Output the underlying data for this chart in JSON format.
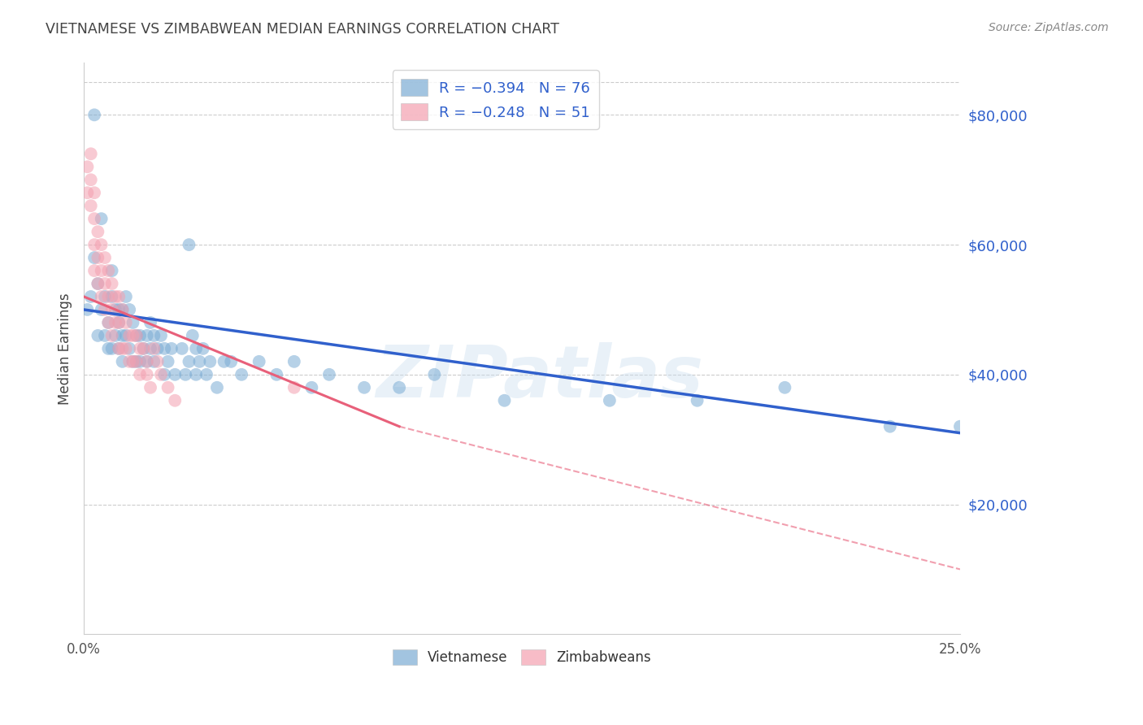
{
  "title": "VIETNAMESE VS ZIMBABWEAN MEDIAN EARNINGS CORRELATION CHART",
  "source": "Source: ZipAtlas.com",
  "ylabel": "Median Earnings",
  "yticks": [
    20000,
    40000,
    60000,
    80000
  ],
  "ytick_labels": [
    "$20,000",
    "$40,000",
    "$60,000",
    "$80,000"
  ],
  "ylim": [
    0,
    88000
  ],
  "xlim": [
    0.0,
    0.25
  ],
  "xtick_positions": [
    0.0,
    0.25
  ],
  "xtick_labels": [
    "0.0%",
    "25.0%"
  ],
  "legend_blue_r": "R = −0.394",
  "legend_blue_n": "N = 76",
  "legend_pink_r": "R = −0.248",
  "legend_pink_n": "N = 51",
  "watermark": "ZIPatlas",
  "blue_color": "#7BACD4",
  "pink_color": "#F4A0B0",
  "line_blue": "#3060CC",
  "line_pink": "#E8607A",
  "grid_color": "#CCCCCC",
  "title_color": "#444444",
  "source_color": "#888888",
  "ylabel_color": "#444444",
  "blue_scatter_x": [
    0.001,
    0.002,
    0.003,
    0.003,
    0.004,
    0.004,
    0.005,
    0.005,
    0.006,
    0.006,
    0.007,
    0.007,
    0.008,
    0.008,
    0.008,
    0.009,
    0.009,
    0.01,
    0.01,
    0.01,
    0.011,
    0.011,
    0.011,
    0.012,
    0.012,
    0.013,
    0.013,
    0.014,
    0.014,
    0.015,
    0.015,
    0.016,
    0.016,
    0.017,
    0.018,
    0.018,
    0.019,
    0.019,
    0.02,
    0.02,
    0.021,
    0.022,
    0.023,
    0.023,
    0.024,
    0.025,
    0.026,
    0.028,
    0.029,
    0.03,
    0.03,
    0.031,
    0.032,
    0.032,
    0.033,
    0.034,
    0.035,
    0.036,
    0.038,
    0.04,
    0.042,
    0.045,
    0.05,
    0.055,
    0.06,
    0.065,
    0.07,
    0.08,
    0.09,
    0.1,
    0.12,
    0.15,
    0.175,
    0.2,
    0.23,
    0.25
  ],
  "blue_scatter_y": [
    50000,
    52000,
    58000,
    80000,
    54000,
    46000,
    64000,
    50000,
    52000,
    46000,
    48000,
    44000,
    56000,
    52000,
    44000,
    50000,
    46000,
    50000,
    48000,
    44000,
    50000,
    46000,
    42000,
    52000,
    46000,
    50000,
    44000,
    48000,
    42000,
    46000,
    42000,
    46000,
    42000,
    44000,
    46000,
    42000,
    48000,
    44000,
    46000,
    42000,
    44000,
    46000,
    44000,
    40000,
    42000,
    44000,
    40000,
    44000,
    40000,
    60000,
    42000,
    46000,
    44000,
    40000,
    42000,
    44000,
    40000,
    42000,
    38000,
    42000,
    42000,
    40000,
    42000,
    40000,
    42000,
    38000,
    40000,
    38000,
    38000,
    40000,
    36000,
    36000,
    36000,
    38000,
    32000,
    32000
  ],
  "pink_scatter_x": [
    0.001,
    0.001,
    0.002,
    0.002,
    0.002,
    0.003,
    0.003,
    0.003,
    0.003,
    0.004,
    0.004,
    0.004,
    0.005,
    0.005,
    0.005,
    0.006,
    0.006,
    0.006,
    0.007,
    0.007,
    0.007,
    0.008,
    0.008,
    0.008,
    0.009,
    0.009,
    0.01,
    0.01,
    0.01,
    0.011,
    0.011,
    0.012,
    0.012,
    0.013,
    0.013,
    0.014,
    0.014,
    0.015,
    0.015,
    0.016,
    0.016,
    0.017,
    0.018,
    0.018,
    0.019,
    0.02,
    0.021,
    0.022,
    0.024,
    0.026,
    0.06
  ],
  "pink_scatter_y": [
    72000,
    68000,
    74000,
    70000,
    66000,
    68000,
    64000,
    60000,
    56000,
    62000,
    58000,
    54000,
    60000,
    56000,
    52000,
    58000,
    54000,
    50000,
    56000,
    52000,
    48000,
    54000,
    50000,
    46000,
    52000,
    48000,
    52000,
    48000,
    44000,
    50000,
    44000,
    48000,
    44000,
    46000,
    42000,
    46000,
    42000,
    46000,
    42000,
    44000,
    40000,
    44000,
    42000,
    40000,
    38000,
    44000,
    42000,
    40000,
    38000,
    36000,
    38000
  ],
  "blue_line_x0": 0.0,
  "blue_line_x1": 0.25,
  "blue_line_y0": 50000,
  "blue_line_y1": 31000,
  "pink_line_solid_x0": 0.0,
  "pink_line_solid_x1": 0.09,
  "pink_line_solid_y0": 52000,
  "pink_line_solid_y1": 32000,
  "pink_line_dash_x0": 0.09,
  "pink_line_dash_x1": 0.25,
  "pink_line_dash_y0": 32000,
  "pink_line_dash_y1": 10000
}
